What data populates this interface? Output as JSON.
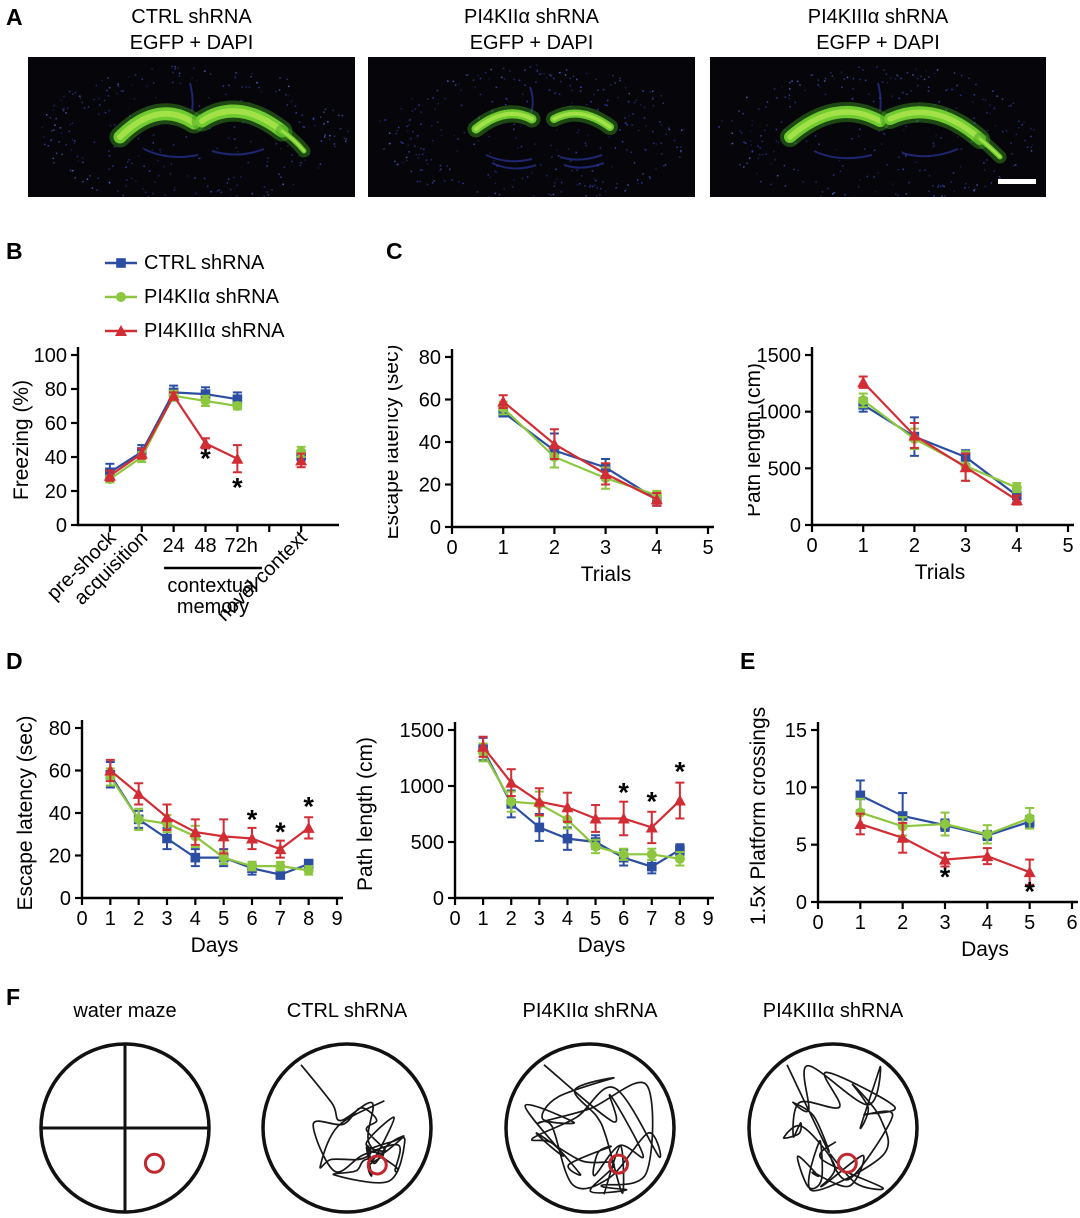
{
  "panels": {
    "A": {
      "label": "A",
      "images": [
        {
          "title_line1": "CTRL shRNA",
          "title_line2": "EGFP + DAPI"
        },
        {
          "title_line1": "PI4KIIα shRNA",
          "title_line2": "EGFP + DAPI"
        },
        {
          "title_line1": "PI4KIIIα shRNA",
          "title_line2": "EGFP + DAPI",
          "scale_bar": true
        }
      ]
    },
    "B": {
      "label": "B",
      "legend": [
        {
          "name": "CTRL shRNA",
          "color": "#2b4ea2",
          "marker": "square"
        },
        {
          "name": "PI4KIIα shRNA",
          "color": "#8dc63f",
          "marker": "circle"
        },
        {
          "name": "PI4KIIIα shRNA",
          "color": "#d22c35",
          "marker": "triangle"
        }
      ]
    },
    "C": {
      "label": "C"
    },
    "D": {
      "label": "D"
    },
    "E": {
      "label": "E"
    },
    "F": {
      "label": "F",
      "platform_color": "#c1272d",
      "plots": [
        {
          "title": "water maze",
          "kind": "quadrants"
        },
        {
          "title": "CTRL shRNA",
          "kind": "trace"
        },
        {
          "title": "PI4KIIα shRNA",
          "kind": "trace"
        },
        {
          "title": "PI4KIIIα shRNA",
          "kind": "trace"
        }
      ]
    }
  },
  "chart_data": [
    {
      "id": "freezing",
      "panel": "B",
      "type": "line",
      "ylabel": "Freezing (%)",
      "ylim": [
        0,
        100
      ],
      "yticks": [
        0,
        20,
        40,
        60,
        80,
        100
      ],
      "xlim": [
        0,
        8
      ],
      "xtick_marks": [
        1,
        2,
        3,
        4,
        5,
        6,
        7
      ],
      "categories": [
        "pre-shock",
        "acquisition",
        "24 h",
        "48 h",
        "72 h",
        "novel context"
      ],
      "x": [
        1,
        2,
        3,
        4,
        5,
        7
      ],
      "line_points": 5,
      "x_rotated_labels": [
        {
          "x": 1,
          "text": "pre-shock"
        },
        {
          "x": 2,
          "text": "acquisition"
        },
        {
          "x": 7,
          "text": "novel context"
        }
      ],
      "x_hour_labels": [
        {
          "x": 3,
          "text": "24"
        },
        {
          "x": 4,
          "text": "48"
        },
        {
          "x": 5.12,
          "text": "72h"
        }
      ],
      "bracket": {
        "from": 2.7,
        "to": 5.77,
        "lines": [
          "contextual",
          "memory"
        ]
      },
      "series": [
        {
          "name": "CTRL shRNA",
          "marker": "square",
          "color": "#2b4ea2",
          "values": [
            31,
            43,
            78,
            77,
            74,
            41
          ],
          "err": [
            5,
            4,
            4,
            4,
            4,
            3
          ]
        },
        {
          "name": "PI4KIIα shRNA",
          "marker": "circle",
          "color": "#8dc63f",
          "values": [
            27,
            40,
            76,
            73,
            70,
            43
          ],
          "err": [
            2,
            3,
            3,
            3,
            2,
            3
          ]
        },
        {
          "name": "PI4KIIIα shRNA",
          "marker": "triangle",
          "color": "#d22c35",
          "values": [
            29,
            42,
            76,
            48,
            39,
            38
          ],
          "err": [
            3,
            3,
            2,
            3,
            8,
            4
          ]
        }
      ],
      "annotations": [
        {
          "x": 4,
          "y": 39,
          "text": "*"
        },
        {
          "x": 5,
          "y": 22,
          "text": "*"
        }
      ]
    },
    {
      "id": "c-latency",
      "panel": "C",
      "type": "line",
      "xlabel": "Trials",
      "ylabel": "Escape latency (sec)",
      "xlim": [
        0,
        5
      ],
      "xticks": [
        0,
        1,
        2,
        3,
        4,
        5
      ],
      "ylim": [
        0,
        80
      ],
      "yticks": [
        0,
        20,
        40,
        60,
        80
      ],
      "x": [
        1,
        2,
        3,
        4
      ],
      "series": [
        {
          "name": "CTRL shRNA",
          "marker": "square",
          "color": "#2b4ea2",
          "values": [
            54,
            36,
            28,
            13
          ],
          "err": [
            2,
            8,
            4,
            3
          ]
        },
        {
          "name": "PI4KIIα shRNA",
          "marker": "circle",
          "color": "#8dc63f",
          "values": [
            56,
            33,
            23,
            15
          ],
          "err": [
            3,
            5,
            5,
            2
          ]
        },
        {
          "name": "PI4KIIIα shRNA",
          "marker": "triangle",
          "color": "#d22c35",
          "values": [
            59,
            39,
            25,
            13
          ],
          "err": [
            3,
            7,
            5,
            3
          ]
        }
      ],
      "annotations": []
    },
    {
      "id": "c-path",
      "panel": "C",
      "type": "line",
      "xlabel": "Trials",
      "ylabel": "Path length (cm)",
      "xlim": [
        0,
        5
      ],
      "xticks": [
        0,
        1,
        2,
        3,
        4,
        5
      ],
      "ylim": [
        0,
        1500
      ],
      "yticks": [
        0,
        500,
        1000,
        1500
      ],
      "x": [
        1,
        2,
        3,
        4
      ],
      "series": [
        {
          "name": "CTRL shRNA",
          "marker": "square",
          "color": "#2b4ea2",
          "values": [
            1060,
            780,
            600,
            260
          ],
          "err": [
            60,
            170,
            60,
            60
          ]
        },
        {
          "name": "PI4KIIα shRNA",
          "marker": "circle",
          "color": "#8dc63f",
          "values": [
            1100,
            760,
            520,
            330
          ],
          "err": [
            60,
            90,
            130,
            40
          ]
        },
        {
          "name": "PI4KIIIα shRNA",
          "marker": "triangle",
          "color": "#d22c35",
          "values": [
            1260,
            790,
            510,
            220
          ],
          "err": [
            50,
            110,
            120,
            40
          ]
        }
      ],
      "annotations": []
    },
    {
      "id": "d-latency",
      "panel": "D",
      "type": "line",
      "xlabel": "Days",
      "ylabel": "Escape latency (sec)",
      "xlim": [
        0,
        9
      ],
      "xticks": [
        0,
        1,
        2,
        3,
        4,
        5,
        6,
        7,
        8,
        9
      ],
      "ylim": [
        0,
        80
      ],
      "yticks": [
        0,
        20,
        40,
        60,
        80
      ],
      "x": [
        1,
        2,
        3,
        4,
        5,
        6,
        7,
        8
      ],
      "series": [
        {
          "name": "CTRL shRNA",
          "marker": "square",
          "color": "#2b4ea2",
          "values": [
            58,
            37,
            28,
            19,
            19,
            14,
            11,
            16
          ],
          "err": [
            6,
            4,
            5,
            4,
            4,
            3,
            2,
            2
          ]
        },
        {
          "name": "PI4KIIα shRNA",
          "marker": "circle",
          "color": "#8dc63f",
          "values": [
            57,
            37,
            35,
            29,
            19,
            15,
            15,
            13
          ],
          "err": [
            4,
            5,
            4,
            5,
            3,
            2,
            2,
            2
          ]
        },
        {
          "name": "PI4KIIIα shRNA",
          "marker": "triangle",
          "color": "#d22c35",
          "values": [
            60,
            49,
            38,
            31,
            29,
            28,
            23,
            33
          ],
          "err": [
            5,
            5,
            6,
            6,
            8,
            5,
            4,
            5
          ]
        }
      ],
      "annotations": [
        {
          "x": 6,
          "y": 37,
          "text": "*"
        },
        {
          "x": 7,
          "y": 31,
          "text": "*"
        },
        {
          "x": 8,
          "y": 43,
          "text": "*"
        }
      ]
    },
    {
      "id": "d-path",
      "panel": "D",
      "type": "line",
      "xlabel": "Days",
      "ylabel": "Path length (cm)",
      "xlim": [
        0,
        9
      ],
      "xticks": [
        0,
        1,
        2,
        3,
        4,
        5,
        6,
        7,
        8,
        9
      ],
      "ylim": [
        0,
        1500
      ],
      "yticks": [
        0,
        500,
        1000,
        1500
      ],
      "x": [
        1,
        2,
        3,
        4,
        5,
        6,
        7,
        8
      ],
      "series": [
        {
          "name": "CTRL shRNA",
          "marker": "square",
          "color": "#2b4ea2",
          "values": [
            1330,
            840,
            630,
            530,
            500,
            360,
            280,
            430
          ],
          "err": [
            100,
            120,
            120,
            100,
            60,
            70,
            60,
            50
          ]
        },
        {
          "name": "PI4KIIα shRNA",
          "marker": "circle",
          "color": "#8dc63f",
          "values": [
            1300,
            860,
            840,
            700,
            460,
            390,
            390,
            350
          ],
          "err": [
            80,
            90,
            110,
            80,
            60,
            50,
            50,
            60
          ]
        },
        {
          "name": "PI4KIIIα shRNA",
          "marker": "triangle",
          "color": "#d22c35",
          "values": [
            1350,
            1030,
            860,
            810,
            710,
            710,
            630,
            870
          ],
          "err": [
            90,
            120,
            120,
            130,
            120,
            150,
            140,
            160
          ]
        }
      ],
      "annotations": [
        {
          "x": 6,
          "y": 940,
          "text": "*"
        },
        {
          "x": 7,
          "y": 860,
          "text": "*"
        },
        {
          "x": 8,
          "y": 1130,
          "text": "*"
        }
      ]
    },
    {
      "id": "e-crossings",
      "panel": "E",
      "type": "line",
      "xlabel": "Days",
      "ylabel": "1.5x Platform crossings",
      "xlim": [
        0,
        6
      ],
      "xticks": [
        0,
        1,
        2,
        3,
        4,
        5,
        6
      ],
      "ylim": [
        0,
        15
      ],
      "yticks": [
        0,
        5,
        10,
        15
      ],
      "x": [
        1,
        2,
        3,
        4,
        5
      ],
      "series": [
        {
          "name": "CTRL shRNA",
          "marker": "square",
          "color": "#2b4ea2",
          "values": [
            9.3,
            7.5,
            6.7,
            5.8,
            7.0
          ],
          "err": [
            1.3,
            2.0,
            0.5,
            0.4,
            0.5
          ]
        },
        {
          "name": "PI4KIIα shRNA",
          "marker": "circle",
          "color": "#8dc63f",
          "values": [
            7.8,
            6.6,
            6.8,
            5.9,
            7.3
          ],
          "err": [
            1.2,
            0.8,
            1.0,
            0.8,
            0.9
          ]
        },
        {
          "name": "PI4KIIIα shRNA",
          "marker": "triangle",
          "color": "#d22c35",
          "values": [
            6.8,
            5.6,
            3.7,
            4.0,
            2.6
          ],
          "err": [
            0.9,
            1.3,
            0.6,
            0.7,
            1.1
          ]
        }
      ],
      "annotations": [
        {
          "x": 3,
          "y": 2.2,
          "text": "*"
        },
        {
          "x": 5,
          "y": 0.9,
          "text": "*"
        }
      ]
    }
  ]
}
